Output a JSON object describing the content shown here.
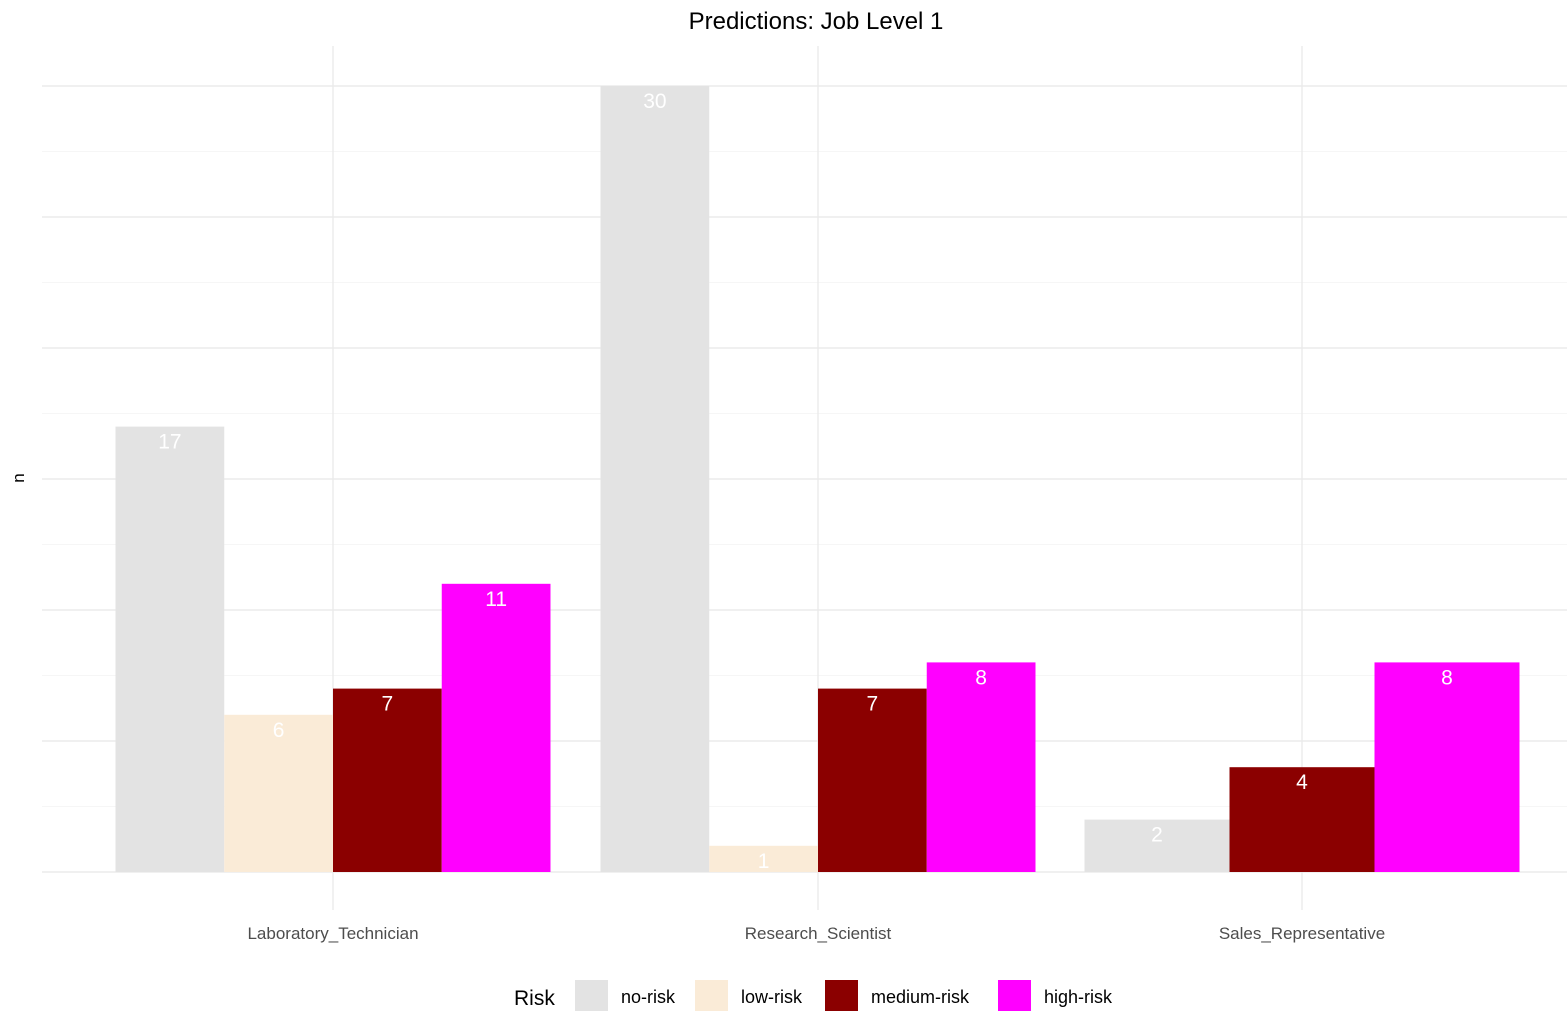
{
  "chart_data": {
    "type": "bar",
    "title": "Predictions: Job Level 1",
    "xlabel": "",
    "ylabel": "n",
    "categories": [
      "Laboratory_Technician",
      "Research_Scientist",
      "Sales_Representative"
    ],
    "series": [
      {
        "name": "no-risk",
        "values": [
          17,
          30,
          2
        ],
        "color": "#E3E3E3"
      },
      {
        "name": "low-risk",
        "values": [
          6,
          1,
          null
        ],
        "color": "#FAEBD7"
      },
      {
        "name": "medium-risk",
        "values": [
          7,
          7,
          4
        ],
        "color": "#8B0000"
      },
      {
        "name": "high-risk",
        "values": [
          11,
          8,
          8
        ],
        "color": "#FF00FF"
      }
    ],
    "ylim": [
      0,
      31.5
    ],
    "y_ticks_shown": false,
    "grid": true,
    "data_labels": true,
    "data_label_color": "#FFFFFF",
    "legend": {
      "title": "Risk",
      "position": "bottom",
      "entries": [
        "no-risk",
        "low-risk",
        "medium-risk",
        "high-risk"
      ]
    }
  }
}
